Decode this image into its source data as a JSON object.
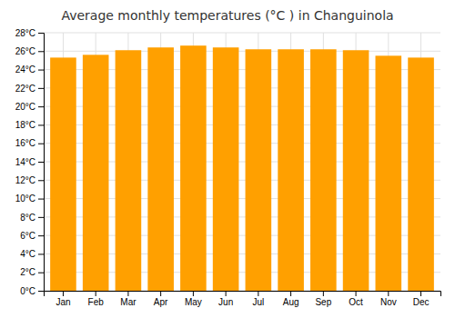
{
  "chart_data": {
    "type": "bar",
    "title": "Average monthly temperatures (°C ) in Changuinola",
    "categories": [
      "Jan",
      "Feb",
      "Mar",
      "Apr",
      "May",
      "Jun",
      "Jul",
      "Aug",
      "Sep",
      "Oct",
      "Nov",
      "Dec"
    ],
    "values": [
      25.3,
      25.6,
      26.1,
      26.4,
      26.6,
      26.4,
      26.2,
      26.2,
      26.2,
      26.1,
      25.5,
      25.3
    ],
    "color": "#FFA000",
    "ylim": [
      0,
      28
    ],
    "yticks": [
      {
        "value": 0,
        "label": "0°C"
      },
      {
        "value": 2,
        "label": "2°C"
      },
      {
        "value": 4,
        "label": "4°C"
      },
      {
        "value": 6,
        "label": "6°C"
      },
      {
        "value": 8,
        "label": "8°C"
      },
      {
        "value": 10,
        "label": "10°C"
      },
      {
        "value": 12,
        "label": "12°C"
      },
      {
        "value": 14,
        "label": "14°C"
      },
      {
        "value": 16,
        "label": "16°C"
      },
      {
        "value": 18,
        "label": "18°C"
      },
      {
        "value": 20,
        "label": "20°C"
      },
      {
        "value": 22,
        "label": "22°C"
      },
      {
        "value": 24,
        "label": "24°C"
      },
      {
        "value": 26,
        "label": "26°C"
      },
      {
        "value": 28,
        "label": "28°C"
      }
    ],
    "grid": true
  }
}
